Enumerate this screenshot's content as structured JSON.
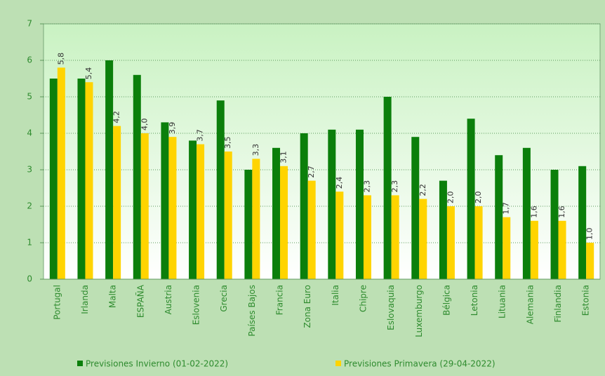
{
  "chart_data": {
    "type": "bar",
    "categories": [
      "Portugal",
      "Irlanda",
      "Malta",
      "ESPAÑA",
      "Austria",
      "Eslovenia",
      "Grecia",
      "Países Bajos",
      "Francia",
      "Zona Euro",
      "Italia",
      "Chipre",
      "Eslovaquia",
      "Luxemburgo",
      "Bélgica",
      "Letonia",
      "Lituania",
      "Alemania",
      "Finlandia",
      "Estonia"
    ],
    "series": [
      {
        "name": "Previsiones Invierno (01-02-2022)",
        "color": "#0b7f0b",
        "values": [
          5.5,
          5.5,
          6.0,
          5.6,
          4.3,
          3.8,
          4.9,
          3.0,
          3.6,
          4.0,
          4.1,
          4.1,
          5.0,
          3.9,
          2.7,
          4.4,
          3.4,
          3.6,
          3.0,
          3.1
        ]
      },
      {
        "name": "Previsiones Primavera (29-04-2022)",
        "color": "#ffd400",
        "values": [
          5.8,
          5.4,
          4.2,
          4.0,
          3.9,
          3.7,
          3.5,
          3.3,
          3.1,
          2.7,
          2.4,
          2.3,
          2.3,
          2.2,
          2.0,
          2.0,
          1.7,
          1.6,
          1.6,
          1.0
        ],
        "value_labels": [
          "5,8",
          "5,4",
          "4,2",
          "4,0",
          "3,9",
          "3,7",
          "3,5",
          "3,3",
          "3,1",
          "2,7",
          "2,4",
          "2,3",
          "2,3",
          "2,2",
          "2,0",
          "2,0",
          "1,7",
          "1,6",
          "1,6",
          "1,0"
        ]
      }
    ],
    "ylim": [
      0,
      7
    ],
    "yticks": [
      0,
      1,
      2,
      3,
      4,
      5,
      6,
      7
    ],
    "grid": true,
    "legend": "bottom"
  }
}
